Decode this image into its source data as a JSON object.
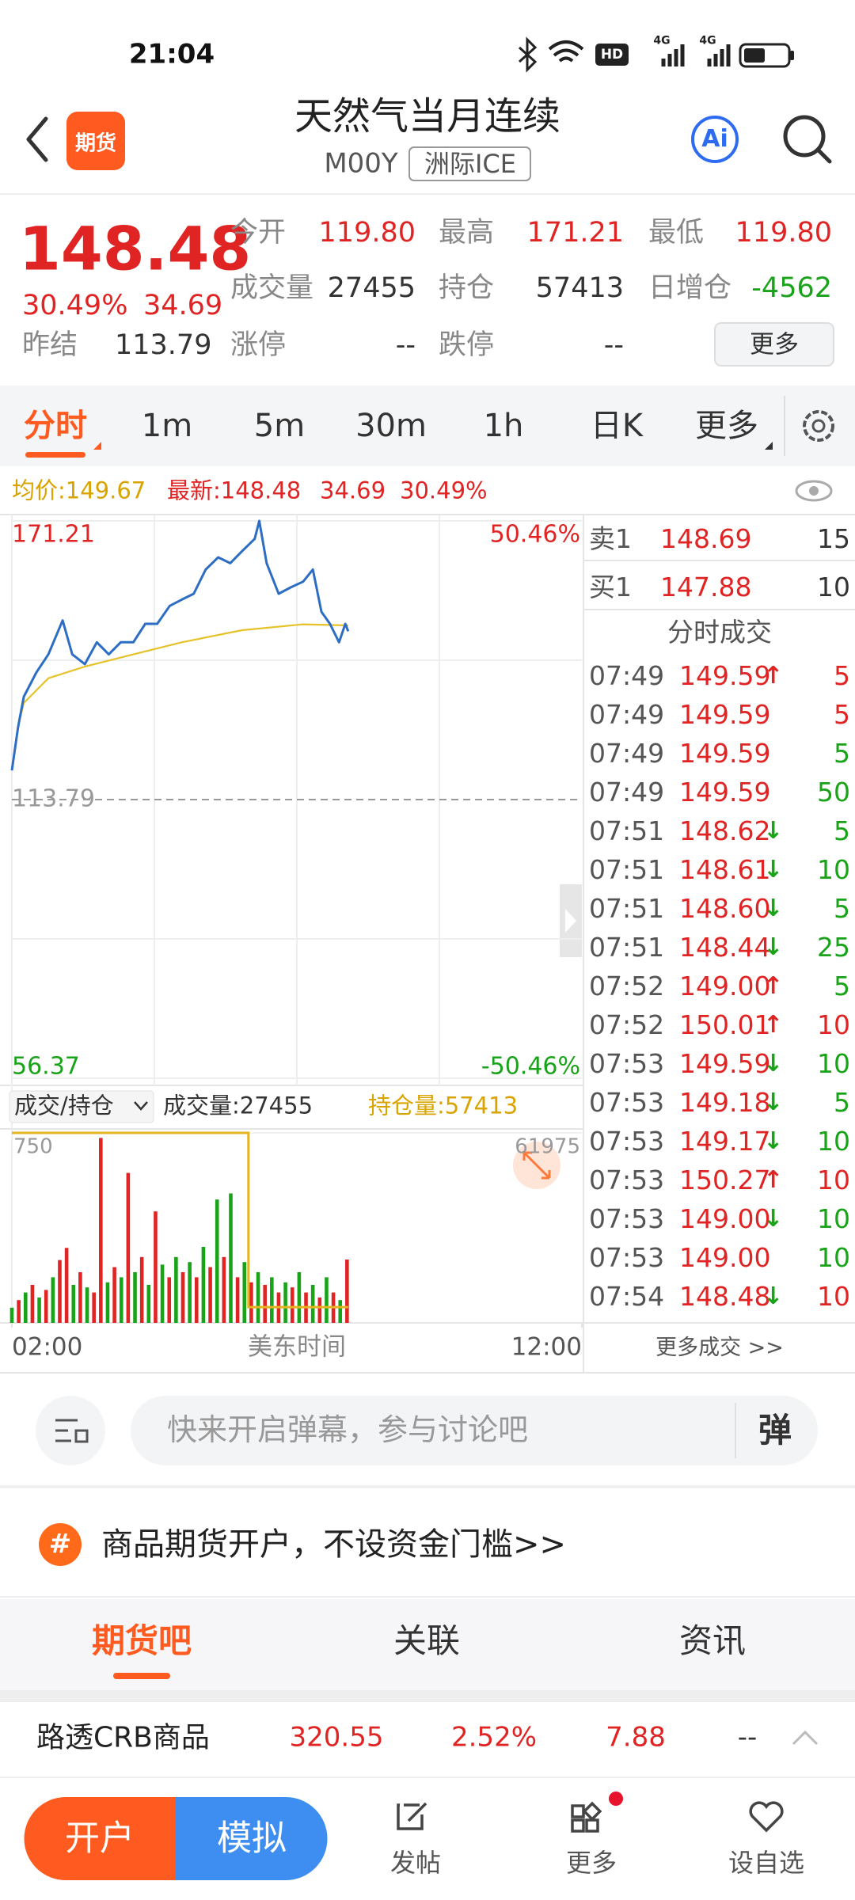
{
  "status_bar": {
    "time": "21:04",
    "icons": [
      "HD",
      "4G",
      "4G"
    ]
  },
  "header": {
    "logo": "期货",
    "title": "天然气当月连续",
    "code": "M00Y",
    "exchange": "洲际ICE",
    "ai": "Ai"
  },
  "quote": {
    "price": "148.48",
    "change_pct": "30.49%",
    "change": "34.69",
    "color": "#e02424",
    "fields": [
      {
        "label": "今开",
        "value": "119.80",
        "color": "#e02424"
      },
      {
        "label": "最高",
        "value": "171.21",
        "color": "#e02424"
      },
      {
        "label": "最低",
        "value": "119.80",
        "color": "#e02424"
      },
      {
        "label": "成交量",
        "value": "27455",
        "color": "#333333"
      },
      {
        "label": "持仓",
        "value": "57413",
        "color": "#333333"
      },
      {
        "label": "日增仓",
        "value": "-4562",
        "color": "#19a319"
      },
      {
        "label": "昨结",
        "value": "113.79",
        "color": "#333333"
      },
      {
        "label": "涨停",
        "value": "--",
        "color": "#333333"
      },
      {
        "label": "跌停",
        "value": "--",
        "color": "#333333"
      }
    ],
    "more": "更多"
  },
  "period_tabs": {
    "items": [
      "分时",
      "1m",
      "5m",
      "30m",
      "1h",
      "日K",
      "更多"
    ],
    "active": 0
  },
  "info_line": {
    "avg": "均价:149.67",
    "latest": "最新:148.48",
    "change": "34.69",
    "change_pct": "30.49%"
  },
  "chart_data": [
    {
      "type": "line",
      "xlim": [
        2,
        12
      ],
      "ylim": [
        56.37,
        171.21
      ],
      "yticks": [
        171.21,
        113.79,
        56.37
      ],
      "y2lim": [
        -50.46,
        50.46
      ],
      "y2ticks": [
        {
          "value": 50.46,
          "label": "50.46%"
        },
        {
          "value": -50.46,
          "label": "-50.46%"
        }
      ],
      "series": [
        {
          "color": "#2d6dc4",
          "x": [
            2,
            2.11,
            2.21,
            2.43,
            2.64,
            2.89,
            3.06,
            3.28,
            3.49,
            3.7,
            3.91,
            4.13,
            4.34,
            4.55,
            4.77,
            4.98,
            5.19,
            5.4,
            5.62,
            5.83,
            6.04,
            6.26,
            6.34,
            6.47,
            6.68,
            6.89,
            7.11,
            7.28,
            7.43,
            7.58,
            7.74,
            7.85,
            7.9
          ],
          "values": [
            119.8,
            128.8,
            135,
            140,
            143.7,
            150.7,
            143.7,
            141.7,
            146.2,
            143.7,
            146.2,
            146.2,
            150,
            150,
            153.7,
            155,
            156.2,
            161.2,
            163.7,
            162.5,
            165,
            167.5,
            171.21,
            162.5,
            156.2,
            157.5,
            158.7,
            161.2,
            152.5,
            150,
            146.2,
            150,
            148.48
          ]
        },
        {
          "color": "#e6c229",
          "x": [
            2.11,
            2.21,
            2.64,
            3.28,
            4.13,
            4.98,
            6.04,
            7.11,
            7.9
          ],
          "values": [
            128.8,
            133.7,
            138.8,
            141.2,
            143.7,
            146.2,
            148.7,
            149.9,
            149.67
          ]
        }
      ]
    },
    {
      "type": "bar",
      "xlim": [
        2,
        12
      ],
      "xticks": [
        {
          "value": 2,
          "label": "02:00"
        },
        {
          "value": 12,
          "label": "12:00"
        }
      ],
      "x_label": "美东时间",
      "ylim": [
        0,
        750
      ],
      "yticks": [
        750
      ],
      "y2lim": [
        57000,
        61975
      ],
      "y2ticks": [
        61975
      ],
      "series": [
        {
          "type": "bar",
          "x": [
            2,
            2.12,
            2.24,
            2.36,
            2.48,
            2.6,
            2.72,
            2.84,
            2.96,
            3.08,
            3.2,
            3.32,
            3.44,
            3.56,
            3.68,
            3.8,
            3.92,
            4.04,
            4.16,
            4.28,
            4.4,
            4.52,
            4.64,
            4.76,
            4.88,
            5,
            5.12,
            5.24,
            5.36,
            5.48,
            5.6,
            5.72,
            5.84,
            5.96,
            6.08,
            6.2,
            6.32,
            6.44,
            6.56,
            6.68,
            6.8,
            6.92,
            7.04,
            7.16,
            7.28,
            7.4,
            7.52,
            7.64,
            7.76,
            7.88
          ],
          "values": [
            60,
            90,
            120,
            150,
            100,
            130,
            180,
            248,
            296,
            150,
            200,
            140,
            120,
            730,
            160,
            220,
            180,
            592,
            200,
            260,
            150,
            440,
            230,
            180,
            260,
            200,
            240,
            180,
            300,
            220,
            487,
            260,
            511,
            180,
            240,
            160,
            200,
            150,
            180,
            120,
            160,
            140,
            200,
            120,
            150,
            100,
            180,
            120,
            90,
            250
          ],
          "colors": [
            "#19a319",
            "#e02424",
            "#19a319",
            "#e02424",
            "#19a319",
            "#e02424",
            "#19a319",
            "#e02424",
            "#e02424",
            "#19a319",
            "#e02424",
            "#19a319",
            "#e02424",
            "#e02424",
            "#19a319",
            "#e02424",
            "#19a319",
            "#e02424",
            "#19a319",
            "#e02424",
            "#19a319",
            "#e02424",
            "#19a319",
            "#e02424",
            "#19a319",
            "#e02424",
            "#19a319",
            "#e02424",
            "#19a319",
            "#e02424",
            "#19a319",
            "#e02424",
            "#19a319",
            "#e02424",
            "#19a319",
            "#e02424",
            "#19a319",
            "#e02424",
            "#19a319",
            "#e02424",
            "#19a319",
            "#e02424",
            "#19a319",
            "#e02424",
            "#19a319",
            "#e02424",
            "#19a319",
            "#e02424",
            "#19a319",
            "#e02424"
          ]
        },
        {
          "type": "line",
          "axis": "y2",
          "color": "#e6b422",
          "x": [
            2,
            6.15,
            6.15,
            7.9
          ],
          "values": [
            61975,
            61975,
            57413,
            57413
          ]
        }
      ]
    }
  ],
  "volume_header": {
    "selector": "成交/持仓",
    "volume": "成交量:27455",
    "open_interest": "持仓量:57413"
  },
  "order_book": [
    {
      "label": "卖1",
      "price": "148.69",
      "qty": "15"
    },
    {
      "label": "买1",
      "price": "147.88",
      "qty": "10"
    }
  ],
  "trades": {
    "title": "分时成交",
    "more": "更多成交 >>",
    "rows": [
      {
        "time": "07:49",
        "price": "149.59",
        "arrow": "↑",
        "arrow_color": "#e02424",
        "qty": "5",
        "qty_color": "#e02424"
      },
      {
        "time": "07:49",
        "price": "149.59",
        "qty": "5",
        "qty_color": "#e02424"
      },
      {
        "time": "07:49",
        "price": "149.59",
        "qty": "5",
        "qty_color": "#19a319"
      },
      {
        "time": "07:49",
        "price": "149.59",
        "qty": "50",
        "qty_color": "#19a319"
      },
      {
        "time": "07:51",
        "price": "148.62",
        "arrow": "↓",
        "arrow_color": "#19a319",
        "qty": "5",
        "qty_color": "#19a319"
      },
      {
        "time": "07:51",
        "price": "148.61",
        "arrow": "↓",
        "arrow_color": "#19a319",
        "qty": "10",
        "qty_color": "#19a319"
      },
      {
        "time": "07:51",
        "price": "148.60",
        "arrow": "↓",
        "arrow_color": "#19a319",
        "qty": "5",
        "qty_color": "#19a319"
      },
      {
        "time": "07:51",
        "price": "148.44",
        "arrow": "↓",
        "arrow_color": "#19a319",
        "qty": "25",
        "qty_color": "#19a319"
      },
      {
        "time": "07:52",
        "price": "149.00",
        "arrow": "↑",
        "arrow_color": "#e02424",
        "qty": "5",
        "qty_color": "#19a319"
      },
      {
        "time": "07:52",
        "price": "150.01",
        "arrow": "↑",
        "arrow_color": "#e02424",
        "qty": "10",
        "qty_color": "#e02424"
      },
      {
        "time": "07:53",
        "price": "149.59",
        "arrow": "↓",
        "arrow_color": "#19a319",
        "qty": "10",
        "qty_color": "#19a319"
      },
      {
        "time": "07:53",
        "price": "149.18",
        "arrow": "↓",
        "arrow_color": "#19a319",
        "qty": "5",
        "qty_color": "#19a319"
      },
      {
        "time": "07:53",
        "price": "149.17",
        "arrow": "↓",
        "arrow_color": "#19a319",
        "qty": "10",
        "qty_color": "#19a319"
      },
      {
        "time": "07:53",
        "price": "150.27",
        "arrow": "↑",
        "arrow_color": "#e02424",
        "qty": "10",
        "qty_color": "#e02424"
      },
      {
        "time": "07:53",
        "price": "149.00",
        "arrow": "↓",
        "arrow_color": "#19a319",
        "qty": "10",
        "qty_color": "#19a319"
      },
      {
        "time": "07:53",
        "price": "149.00",
        "qty": "10",
        "qty_color": "#19a319"
      },
      {
        "time": "07:54",
        "price": "148.48",
        "arrow": "↓",
        "arrow_color": "#19a319",
        "qty": "10",
        "qty_color": "#e02424"
      }
    ]
  },
  "comment_bar": {
    "placeholder": "快来开启弹幕，参与讨论吧",
    "button": "弹"
  },
  "promo": {
    "icon": "#",
    "text": "商品期货开户，不设资金门槛>>"
  },
  "section_tabs": {
    "items": [
      "期货吧",
      "关联",
      "资讯"
    ],
    "active": 0
  },
  "ticker": {
    "name": "路透CRB商品",
    "price": "320.55",
    "change_pct": "2.52%",
    "change": "7.88",
    "extra": "--"
  },
  "bottom_nav": {
    "open_account": "开户",
    "simulate": "模拟",
    "items": [
      "发帖",
      "更多",
      "设自选"
    ]
  }
}
